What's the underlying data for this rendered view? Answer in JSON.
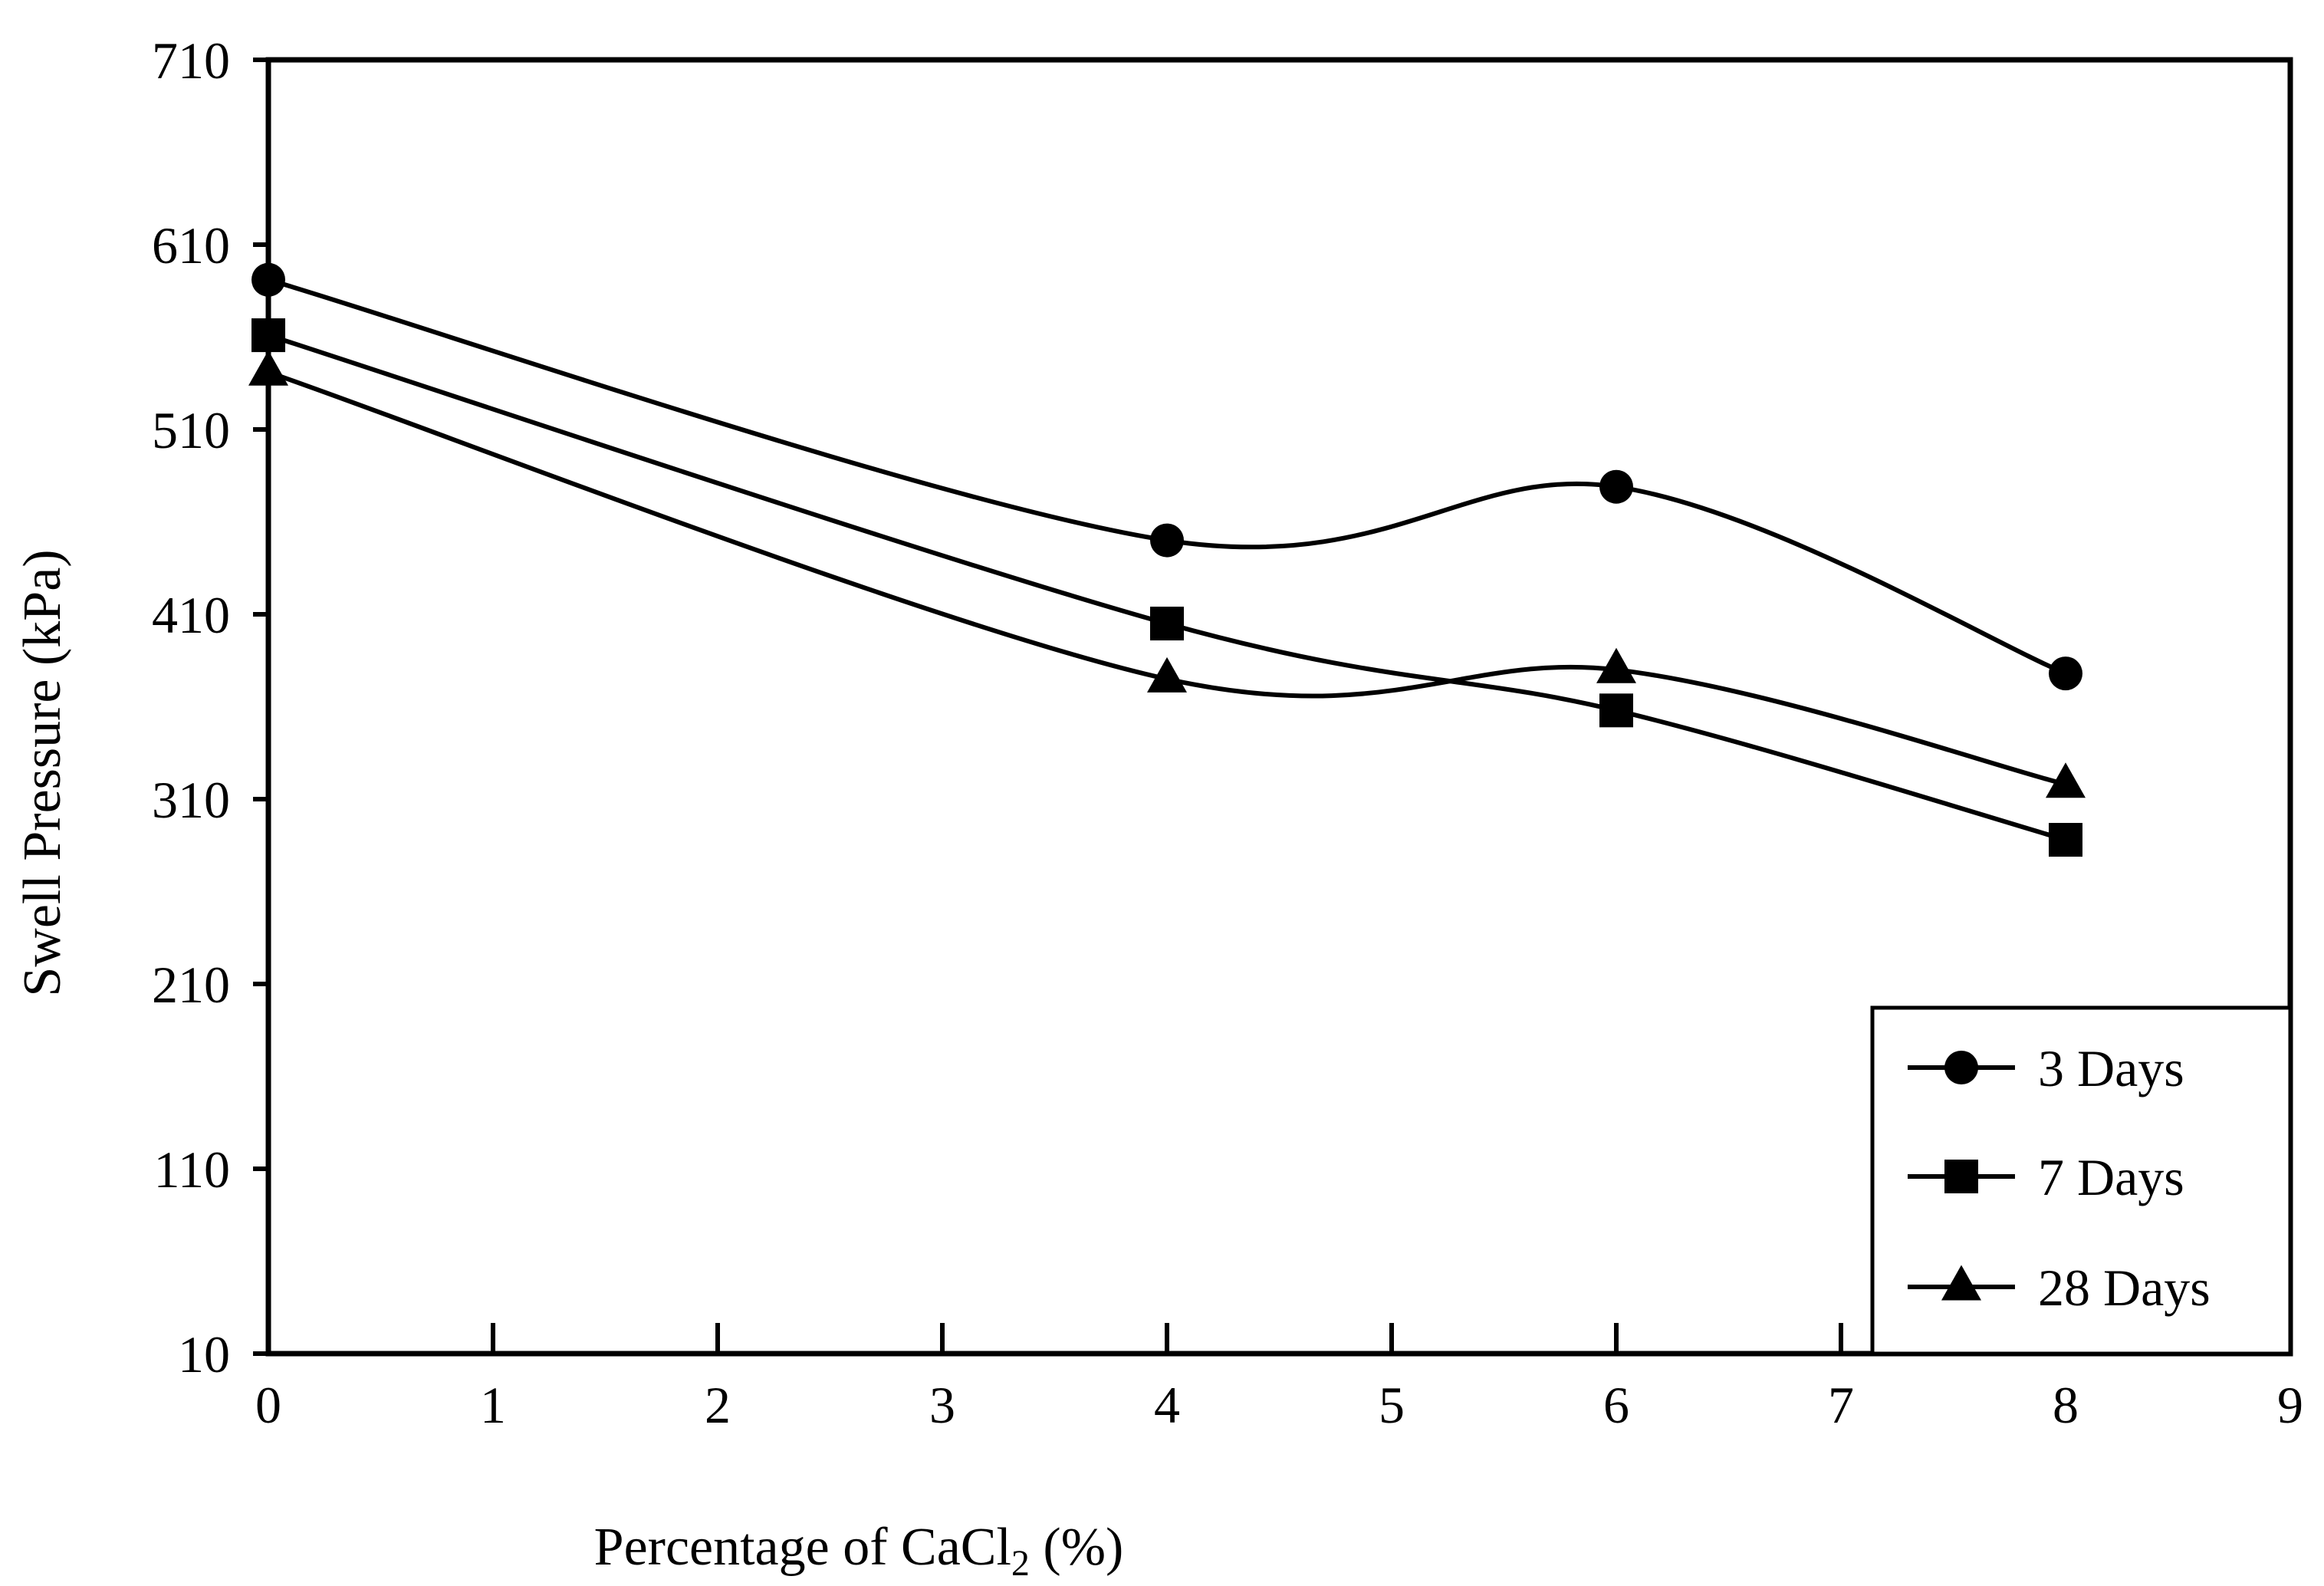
{
  "chart_data": {
    "type": "line",
    "title": "",
    "xlabel_main": "Percentage  of CaCl",
    "xlabel_sub": "2",
    "xlabel_suffix": " (%)",
    "ylabel": "Swell Pressure (kPa)",
    "xlim": [
      0,
      9
    ],
    "ylim": [
      10,
      710
    ],
    "x_ticks": [
      "0",
      "1",
      "2",
      "3",
      "4",
      "5",
      "6",
      "7",
      "8",
      "9"
    ],
    "y_ticks": [
      "10",
      "110",
      "210",
      "310",
      "410",
      "510",
      "610",
      "710"
    ],
    "legend_position": "bottom-right",
    "series": [
      {
        "name": "3 Days",
        "marker": "circle",
        "x": [
          0,
          4,
          6,
          8
        ],
        "y": [
          591,
          450,
          479,
          378
        ]
      },
      {
        "name": "7 Days",
        "marker": "square",
        "x": [
          0,
          4,
          6,
          8
        ],
        "y": [
          561,
          405,
          358,
          288
        ]
      },
      {
        "name": "28 Days",
        "marker": "triangle",
        "x": [
          0,
          4,
          6,
          8
        ],
        "y": [
          541,
          375,
          380,
          318
        ]
      }
    ]
  }
}
